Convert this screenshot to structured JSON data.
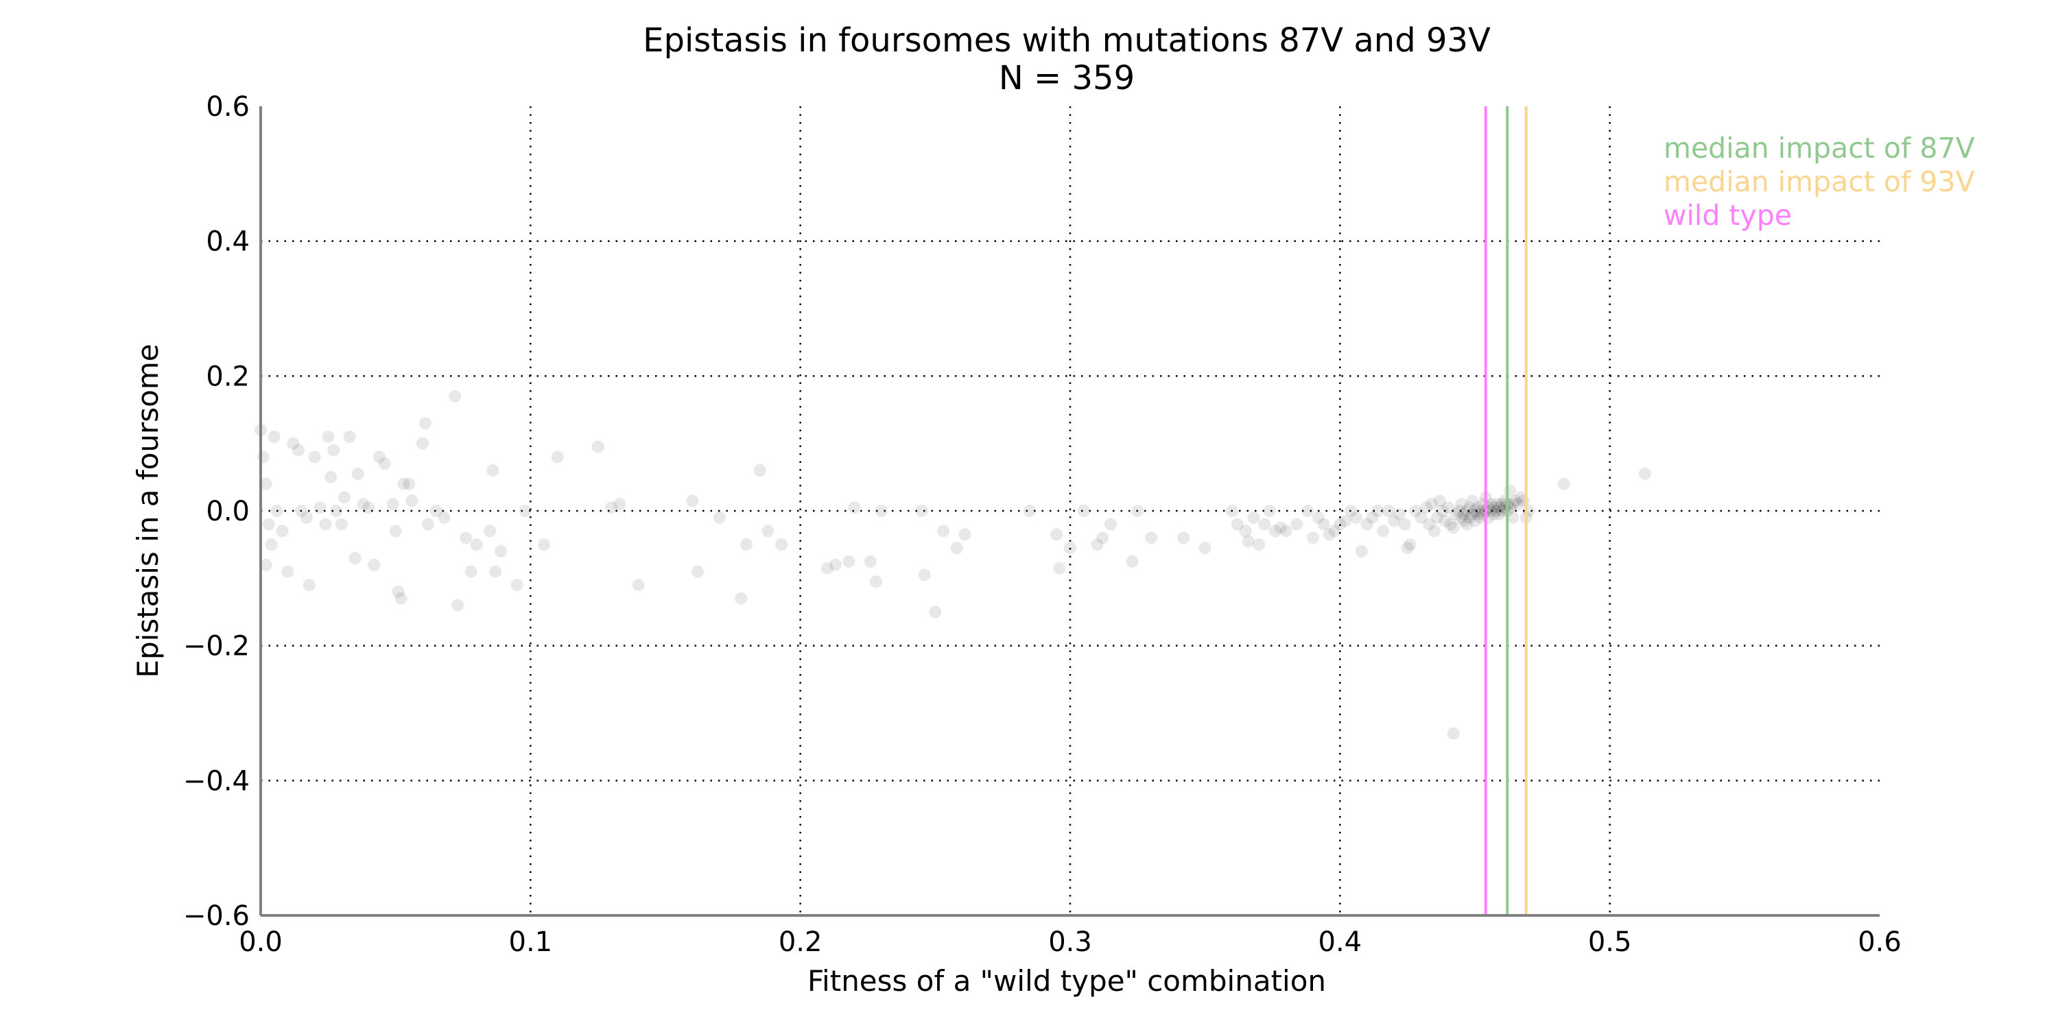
{
  "chart_data": {
    "type": "scatter",
    "title": "Epistasis in foursomes with mutations 87V and 93V",
    "subtitle": "N = 359",
    "xlabel": "Fitness of a \"wild type\" combination",
    "ylabel": "Epistasis in a foursome",
    "xlim": [
      0.0,
      0.6
    ],
    "ylim": [
      -0.6,
      0.6
    ],
    "x_ticks": [
      0.0,
      0.1,
      0.2,
      0.3,
      0.4,
      0.5,
      0.6
    ],
    "y_ticks": [
      -0.6,
      -0.4,
      -0.2,
      0.0,
      0.2,
      0.4,
      0.6
    ],
    "x_tick_labels": [
      "0.0",
      "0.1",
      "0.2",
      "0.3",
      "0.4",
      "0.5",
      "0.6"
    ],
    "y_tick_labels": [
      "−0.6",
      "−0.4",
      "−0.2",
      "0.0",
      "0.2",
      "0.4",
      "0.6"
    ],
    "grid": true,
    "legend_position": "top-right",
    "point_color": "#000000",
    "reference_lines": [
      {
        "name": "median impact of 87V",
        "x": 0.462,
        "color": "#8fc98f"
      },
      {
        "name": "median impact of 93V",
        "x": 0.469,
        "color": "#fad58f"
      },
      {
        "name": "wild type",
        "x": 0.454,
        "color": "#ff80ff"
      }
    ],
    "points": [
      [
        0.0,
        0.12
      ],
      [
        0.001,
        0.08
      ],
      [
        0.002,
        0.04
      ],
      [
        0.003,
        -0.02
      ],
      [
        0.004,
        -0.05
      ],
      [
        0.005,
        0.11
      ],
      [
        0.002,
        -0.08
      ],
      [
        0.006,
        0.0
      ],
      [
        0.008,
        -0.03
      ],
      [
        0.01,
        -0.09
      ],
      [
        0.012,
        0.1
      ],
      [
        0.014,
        0.09
      ],
      [
        0.015,
        0.0
      ],
      [
        0.017,
        -0.01
      ],
      [
        0.018,
        -0.11
      ],
      [
        0.02,
        0.08
      ],
      [
        0.022,
        0.005
      ],
      [
        0.024,
        -0.02
      ],
      [
        0.025,
        0.11
      ],
      [
        0.026,
        0.05
      ],
      [
        0.027,
        0.09
      ],
      [
        0.028,
        0.0
      ],
      [
        0.03,
        -0.02
      ],
      [
        0.031,
        0.02
      ],
      [
        0.033,
        0.11
      ],
      [
        0.035,
        -0.07
      ],
      [
        0.036,
        0.055
      ],
      [
        0.038,
        0.01
      ],
      [
        0.04,
        0.005
      ],
      [
        0.042,
        -0.08
      ],
      [
        0.044,
        0.08
      ],
      [
        0.046,
        0.07
      ],
      [
        0.049,
        0.01
      ],
      [
        0.05,
        -0.03
      ],
      [
        0.051,
        -0.12
      ],
      [
        0.052,
        -0.13
      ],
      [
        0.053,
        0.04
      ],
      [
        0.055,
        0.04
      ],
      [
        0.056,
        0.015
      ],
      [
        0.06,
        0.1
      ],
      [
        0.061,
        0.13
      ],
      [
        0.062,
        -0.02
      ],
      [
        0.065,
        0.0
      ],
      [
        0.068,
        -0.01
      ],
      [
        0.072,
        0.17
      ],
      [
        0.073,
        -0.14
      ],
      [
        0.076,
        -0.04
      ],
      [
        0.078,
        -0.09
      ],
      [
        0.08,
        -0.05
      ],
      [
        0.085,
        -0.03
      ],
      [
        0.086,
        0.06
      ],
      [
        0.087,
        -0.09
      ],
      [
        0.089,
        -0.06
      ],
      [
        0.095,
        -0.11
      ],
      [
        0.098,
        0.0
      ],
      [
        0.105,
        -0.05
      ],
      [
        0.11,
        0.08
      ],
      [
        0.125,
        0.095
      ],
      [
        0.13,
        0.005
      ],
      [
        0.133,
        0.01
      ],
      [
        0.14,
        -0.11
      ],
      [
        0.16,
        0.015
      ],
      [
        0.162,
        -0.09
      ],
      [
        0.17,
        -0.01
      ],
      [
        0.178,
        -0.13
      ],
      [
        0.18,
        -0.05
      ],
      [
        0.185,
        0.06
      ],
      [
        0.188,
        -0.03
      ],
      [
        0.193,
        -0.05
      ],
      [
        0.21,
        -0.085
      ],
      [
        0.213,
        -0.08
      ],
      [
        0.218,
        -0.075
      ],
      [
        0.22,
        0.005
      ],
      [
        0.226,
        -0.075
      ],
      [
        0.228,
        -0.105
      ],
      [
        0.23,
        0.0
      ],
      [
        0.245,
        0.0
      ],
      [
        0.246,
        -0.095
      ],
      [
        0.25,
        -0.15
      ],
      [
        0.253,
        -0.03
      ],
      [
        0.258,
        -0.055
      ],
      [
        0.261,
        -0.035
      ],
      [
        0.285,
        0.0
      ],
      [
        0.295,
        -0.035
      ],
      [
        0.296,
        -0.085
      ],
      [
        0.3,
        -0.055
      ],
      [
        0.305,
        0.0
      ],
      [
        0.31,
        -0.05
      ],
      [
        0.312,
        -0.04
      ],
      [
        0.315,
        -0.02
      ],
      [
        0.323,
        -0.075
      ],
      [
        0.325,
        0.0
      ],
      [
        0.33,
        -0.04
      ],
      [
        0.342,
        -0.04
      ],
      [
        0.35,
        -0.055
      ],
      [
        0.36,
        0.0
      ],
      [
        0.362,
        -0.02
      ],
      [
        0.365,
        -0.03
      ],
      [
        0.366,
        -0.045
      ],
      [
        0.368,
        -0.01
      ],
      [
        0.37,
        -0.05
      ],
      [
        0.372,
        -0.02
      ],
      [
        0.374,
        0.0
      ],
      [
        0.376,
        -0.03
      ],
      [
        0.378,
        -0.025
      ],
      [
        0.38,
        -0.03
      ],
      [
        0.384,
        -0.02
      ],
      [
        0.388,
        0.0
      ],
      [
        0.39,
        -0.04
      ],
      [
        0.392,
        -0.01
      ],
      [
        0.394,
        -0.02
      ],
      [
        0.396,
        -0.035
      ],
      [
        0.398,
        -0.03
      ],
      [
        0.4,
        -0.02
      ],
      [
        0.402,
        -0.015
      ],
      [
        0.404,
        0.0
      ],
      [
        0.406,
        -0.01
      ],
      [
        0.408,
        -0.06
      ],
      [
        0.41,
        -0.02
      ],
      [
        0.412,
        -0.01
      ],
      [
        0.414,
        0.0
      ],
      [
        0.416,
        -0.03
      ],
      [
        0.418,
        0.0
      ],
      [
        0.42,
        -0.015
      ],
      [
        0.422,
        -0.005
      ],
      [
        0.424,
        -0.02
      ],
      [
        0.425,
        -0.055
      ],
      [
        0.426,
        -0.05
      ],
      [
        0.428,
        0.0
      ],
      [
        0.43,
        -0.01
      ],
      [
        0.432,
        0.005
      ],
      [
        0.433,
        -0.02
      ],
      [
        0.434,
        0.01
      ],
      [
        0.435,
        -0.03
      ],
      [
        0.436,
        -0.01
      ],
      [
        0.437,
        0.015
      ],
      [
        0.438,
        0.0
      ],
      [
        0.439,
        -0.015
      ],
      [
        0.44,
        0.005
      ],
      [
        0.441,
        -0.02
      ],
      [
        0.442,
        -0.025
      ],
      [
        0.442,
        -0.33
      ],
      [
        0.443,
        -0.005
      ],
      [
        0.444,
        0.0
      ],
      [
        0.445,
        -0.01
      ],
      [
        0.445,
        0.01
      ],
      [
        0.446,
        -0.015
      ],
      [
        0.446,
        -0.005
      ],
      [
        0.447,
        0.0
      ],
      [
        0.447,
        -0.02
      ],
      [
        0.448,
        0.005
      ],
      [
        0.448,
        -0.01
      ],
      [
        0.449,
        -0.005
      ],
      [
        0.449,
        0.015
      ],
      [
        0.45,
        0.0
      ],
      [
        0.45,
        -0.015
      ],
      [
        0.451,
        -0.005
      ],
      [
        0.451,
        0.005
      ],
      [
        0.452,
        0.0
      ],
      [
        0.452,
        -0.01
      ],
      [
        0.453,
        0.01
      ],
      [
        0.453,
        -0.005
      ],
      [
        0.454,
        0.0
      ],
      [
        0.454,
        0.02
      ],
      [
        0.455,
        -0.01
      ],
      [
        0.455,
        0.005
      ],
      [
        0.456,
        0.0
      ],
      [
        0.456,
        0.01
      ],
      [
        0.457,
        -0.005
      ],
      [
        0.457,
        0.005
      ],
      [
        0.458,
        0.0
      ],
      [
        0.458,
        0.01
      ],
      [
        0.459,
        0.005
      ],
      [
        0.459,
        -0.005
      ],
      [
        0.46,
        0.0
      ],
      [
        0.46,
        0.01
      ],
      [
        0.461,
        0.005
      ],
      [
        0.461,
        0.015
      ],
      [
        0.462,
        0.0
      ],
      [
        0.462,
        0.01
      ],
      [
        0.463,
        0.005
      ],
      [
        0.463,
        0.03
      ],
      [
        0.464,
        0.01
      ],
      [
        0.464,
        -0.01
      ],
      [
        0.465,
        0.015
      ],
      [
        0.466,
        0.01
      ],
      [
        0.467,
        0.02
      ],
      [
        0.468,
        0.015
      ],
      [
        0.469,
        -0.01
      ],
      [
        0.47,
        0.0
      ],
      [
        0.483,
        0.04
      ],
      [
        0.513,
        0.055
      ]
    ]
  }
}
